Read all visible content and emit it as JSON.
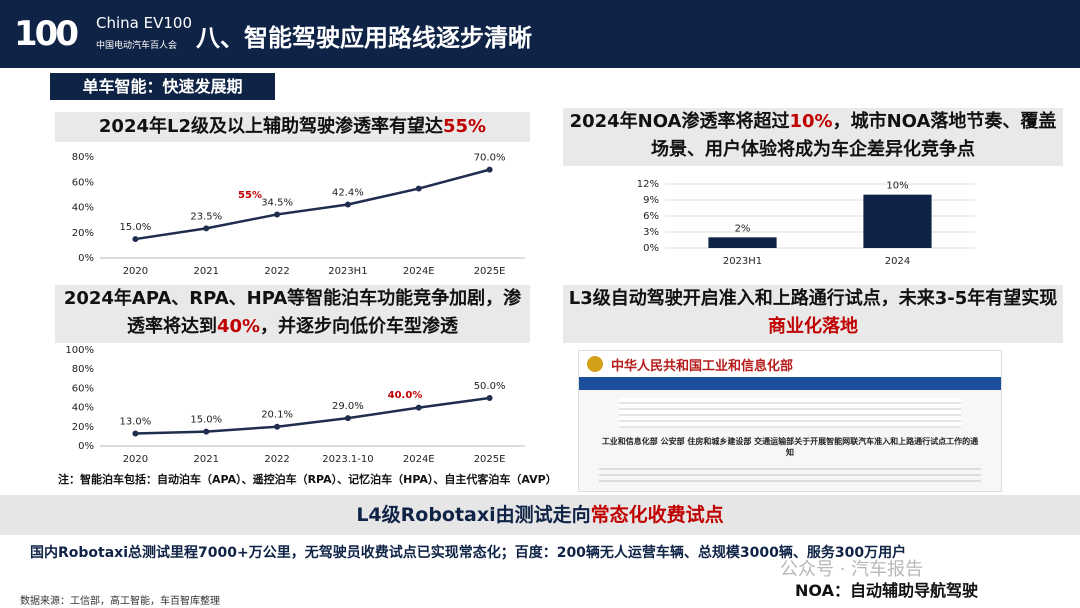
{
  "header": {
    "logo": "China EV100",
    "logo_sub": "中国电动汽车百人会",
    "title": "八、智能驾驶应用路线逐步清晰"
  },
  "section": "单车智能：快速发展期",
  "boxes": [
    {
      "title": [
        "2024年L2级及以上辅助驾驶渗透率有望达",
        "55%"
      ]
    },
    {
      "title": [
        "2024年NOA渗透率将超过",
        "10%",
        "，城市NOA落地节奏、覆盖场景、用户体验将成为车企差异化竞争点"
      ]
    },
    {
      "title": [
        "2024年APA、RPA、HPA等智能泊车功能竞争加剧，渗透率将达到",
        "40%",
        "，并逐步向低价车型渗透"
      ]
    },
    {
      "title": [
        "L3级自动驾驶开启准入和上路通行试点，未来3-5年有望实现",
        "商业化落地"
      ]
    }
  ],
  "document_image": {
    "org": "中华人民共和国工业和信息化部",
    "heading": "工业和信息化部 公安部 住房和城乡建设部 交通运输部关于开展智能网联汽车准入和上路通行试点工作的通知"
  },
  "chart_data": [
    {
      "type": "line",
      "color": "#1f2d4e",
      "categories": [
        "2020",
        "2021",
        "2022",
        "2023H1",
        "2024E",
        "2025E"
      ],
      "values": [
        15.0,
        23.5,
        34.5,
        42.4,
        55,
        70.0
      ],
      "value_labels": [
        "15.0%",
        "23.5%",
        "34.5%",
        "42.4%",
        null,
        "70.0%"
      ],
      "annotations": [
        "55%"
      ],
      "ylim": [
        0,
        80
      ],
      "yticks": [
        {
          "value": 0,
          "label": "0%"
        },
        {
          "value": 20,
          "label": "20%"
        },
        {
          "value": 40,
          "label": "40%"
        },
        {
          "value": 60,
          "label": "60%"
        },
        {
          "value": 80,
          "label": "80%"
        }
      ]
    },
    {
      "type": "bar",
      "color": "#0f2346",
      "categories": [
        "2023H1",
        "2024"
      ],
      "values": [
        2,
        10
      ],
      "value_labels": [
        "2%",
        "10%"
      ],
      "ylim": [
        0,
        12
      ],
      "yticks": [
        {
          "value": 0,
          "label": "0%"
        },
        {
          "value": 3,
          "label": "3%"
        },
        {
          "value": 6,
          "label": "6%"
        },
        {
          "value": 9,
          "label": "9%"
        },
        {
          "value": 12,
          "label": "12%"
        }
      ]
    },
    {
      "type": "line",
      "color": "#1f2d4e",
      "categories": [
        "2020",
        "2021",
        "2022",
        "2023.1-10",
        "2024E",
        "2025E"
      ],
      "values": [
        13.0,
        15.0,
        20.1,
        29.0,
        40.0,
        50.0
      ],
      "value_labels": [
        "13.0%",
        "15.0%",
        "20.1%",
        "29.0%",
        null,
        "50.0%"
      ],
      "annotations": [
        "40.0%"
      ],
      "ylim": [
        0,
        100
      ],
      "yticks": [
        {
          "value": 0,
          "label": "0%"
        },
        {
          "value": 20,
          "label": "20%"
        },
        {
          "value": 40,
          "label": "40%"
        },
        {
          "value": 60,
          "label": "60%"
        },
        {
          "value": 80,
          "label": "80%"
        },
        {
          "value": 100,
          "label": "100%"
        }
      ]
    }
  ],
  "note": "注：智能泊车包括：自动泊车（APA）、遥控泊车（RPA）、记忆泊车（HPA）、自主代客泊车（AVP）",
  "banner": [
    "L4级Robotaxi由测试走向",
    "常态化收费试点"
  ],
  "summary": "国内Robotaxi总测试里程7000+万公里，无驾驶员收费试点已实现常态化；百度：200辆无人运营车辆、总规模3000辆、服务300万用户",
  "source": "数据来源：工信部，高工智能，车百智库整理",
  "watermark": "公众号 · 汽车报告",
  "footnote": "NOA：自动辅助导航驾驶"
}
